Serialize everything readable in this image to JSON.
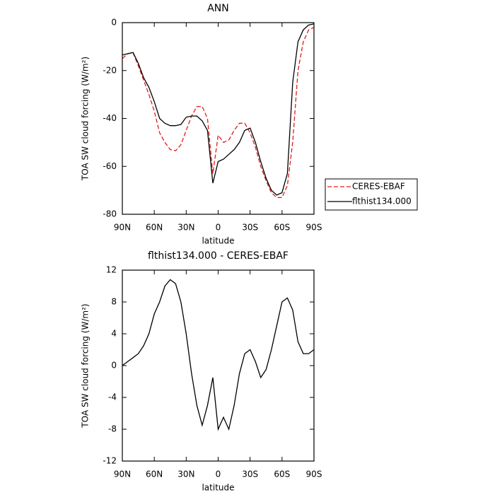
{
  "chart_data": [
    {
      "type": "line",
      "title": "ANN",
      "xlabel": "latitude",
      "ylabel": "TOA SW cloud forcing (W/m²)",
      "x": [
        90,
        85,
        80,
        75,
        70,
        65,
        60,
        55,
        50,
        45,
        40,
        35,
        30,
        25,
        20,
        15,
        10,
        5,
        0,
        -5,
        -10,
        -15,
        -20,
        -25,
        -30,
        -35,
        -40,
        -45,
        -50,
        -55,
        -60,
        -65,
        -70,
        -75,
        -80,
        -85,
        -90
      ],
      "series": [
        {
          "name": "CERES-EBAF",
          "color": "#e41a1c",
          "style": "dashed",
          "values": [
            -15,
            -13,
            -12.5,
            -18,
            -24,
            -30,
            -37,
            -46,
            -50,
            -53,
            -53.5,
            -51,
            -45,
            -39,
            -35,
            -35,
            -40,
            -63,
            -47,
            -50,
            -49,
            -45,
            -42,
            -42,
            -46,
            -52,
            -60,
            -66,
            -71,
            -73,
            -73,
            -68,
            -50,
            -20,
            -8,
            -3,
            -2
          ]
        },
        {
          "name": "flthist134.000",
          "color": "#000000",
          "style": "solid",
          "values": [
            -13.5,
            -13,
            -12.5,
            -17,
            -23,
            -27,
            -33,
            -40,
            -42,
            -43,
            -43,
            -42.5,
            -39.5,
            -39,
            -39,
            -41,
            -45,
            -67,
            -58,
            -57,
            -55,
            -53,
            -50,
            -45,
            -44,
            -50,
            -58,
            -65,
            -70,
            -72,
            -71,
            -63,
            -25,
            -8,
            -3,
            -1,
            -0.5
          ]
        }
      ],
      "xlim": [
        90,
        -90
      ],
      "xticks": [
        {
          "value": 90,
          "label": "90N"
        },
        {
          "value": 60,
          "label": "60N"
        },
        {
          "value": 30,
          "label": "30N"
        },
        0,
        {
          "value": -30,
          "label": "30S"
        },
        {
          "value": -60,
          "label": "60S"
        },
        {
          "value": -90,
          "label": "90S"
        }
      ],
      "ylim": [
        -80,
        0
      ],
      "yticks": [
        -80,
        -60,
        -40,
        -20,
        0
      ],
      "legend": "right"
    },
    {
      "type": "line",
      "title": "flthist134.000 - CERES-EBAF",
      "xlabel": "latitude",
      "ylabel": "TOA SW cloud forcing (W/m²)",
      "x": [
        90,
        85,
        80,
        75,
        70,
        65,
        60,
        55,
        50,
        45,
        40,
        35,
        30,
        25,
        20,
        15,
        10,
        5,
        0,
        -5,
        -10,
        -15,
        -20,
        -25,
        -30,
        -35,
        -40,
        -45,
        -50,
        -55,
        -60,
        -65,
        -70,
        -75,
        -80,
        -85,
        -90
      ],
      "color": "#000000",
      "values": [
        0,
        0.5,
        1,
        1.5,
        2.5,
        4,
        6.5,
        8,
        10,
        10.8,
        10.3,
        8,
        4,
        -1,
        -5,
        -7.5,
        -5,
        -1.5,
        -8,
        -6.5,
        -8,
        -5,
        -1,
        1.5,
        2,
        0.5,
        -1.5,
        -0.5,
        2,
        5,
        8,
        8.5,
        7,
        3,
        1.5,
        1.5,
        2
      ],
      "xlim": [
        90,
        -90
      ],
      "xticks": [
        {
          "value": 90,
          "label": "90N"
        },
        {
          "value": 60,
          "label": "60N"
        },
        {
          "value": 30,
          "label": "30N"
        },
        0,
        {
          "value": -30,
          "label": "30S"
        },
        {
          "value": -60,
          "label": "60S"
        },
        {
          "value": -90,
          "label": "90S"
        }
      ],
      "ylim": [
        -12,
        12
      ],
      "yticks": [
        -12,
        -8,
        -4,
        0,
        4,
        8,
        12
      ]
    }
  ]
}
